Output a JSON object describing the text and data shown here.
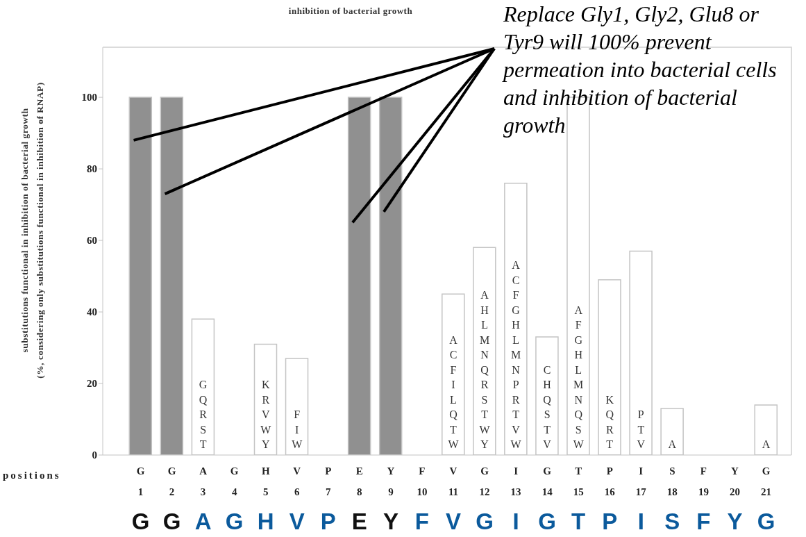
{
  "chart_data": {
    "type": "bar",
    "title": "inhibition of bacterial growth",
    "xlabel": "positions",
    "ylabel": "substitutions functional in inhibition of bacterial growth\n(%, considering only substitutions functional in inhibition of RNAP)",
    "categories": [
      "G\n1",
      "G\n2",
      "A\n3",
      "G\n4",
      "H\n5",
      "V\n6",
      "P\n7",
      "E\n8",
      "Y\n9",
      "F\n10",
      "V\n11",
      "G\n12",
      "I\n13",
      "G\n14",
      "T\n15",
      "P\n16",
      "I\n17",
      "S\n18",
      "F\n19",
      "Y\n20",
      "G\n21"
    ],
    "stacked": true,
    "series": [
      {
        "color": "#909090",
        "values": [
          100,
          100,
          null,
          null,
          null,
          null,
          null,
          100,
          100,
          null,
          null,
          null,
          null,
          null,
          null,
          null,
          null,
          null,
          null,
          null,
          null
        ]
      },
      {
        "color": "#ffffff",
        "values": [
          null,
          null,
          38,
          0,
          31,
          27,
          0,
          null,
          null,
          0,
          45,
          58,
          76,
          33,
          100,
          49,
          57,
          13,
          0,
          0,
          14
        ],
        "value_labels": [
          null,
          null,
          "GQRST",
          null,
          "KRVWY",
          "FIW",
          null,
          null,
          null,
          null,
          "ACFILQTW",
          "AHLMNQRSTWY",
          "ACFGHLMNPRTVW",
          "CHQSTV",
          "AFGHLMNQSW",
          "KQRT",
          "PTV",
          "A",
          null,
          null,
          "A"
        ]
      }
    ],
    "ylim": [
      0,
      114
    ],
    "yticks": [
      0,
      20,
      40,
      60,
      80,
      100
    ],
    "annotations": [
      "Replace Gly1, Gly2, Glu8 or Tyr9 will 100% prevent permeation into bacterial cells and inhibition of bacterial growth",
      "G G A G H V P E Y F V G I G T P I S F Y G"
    ]
  }
}
